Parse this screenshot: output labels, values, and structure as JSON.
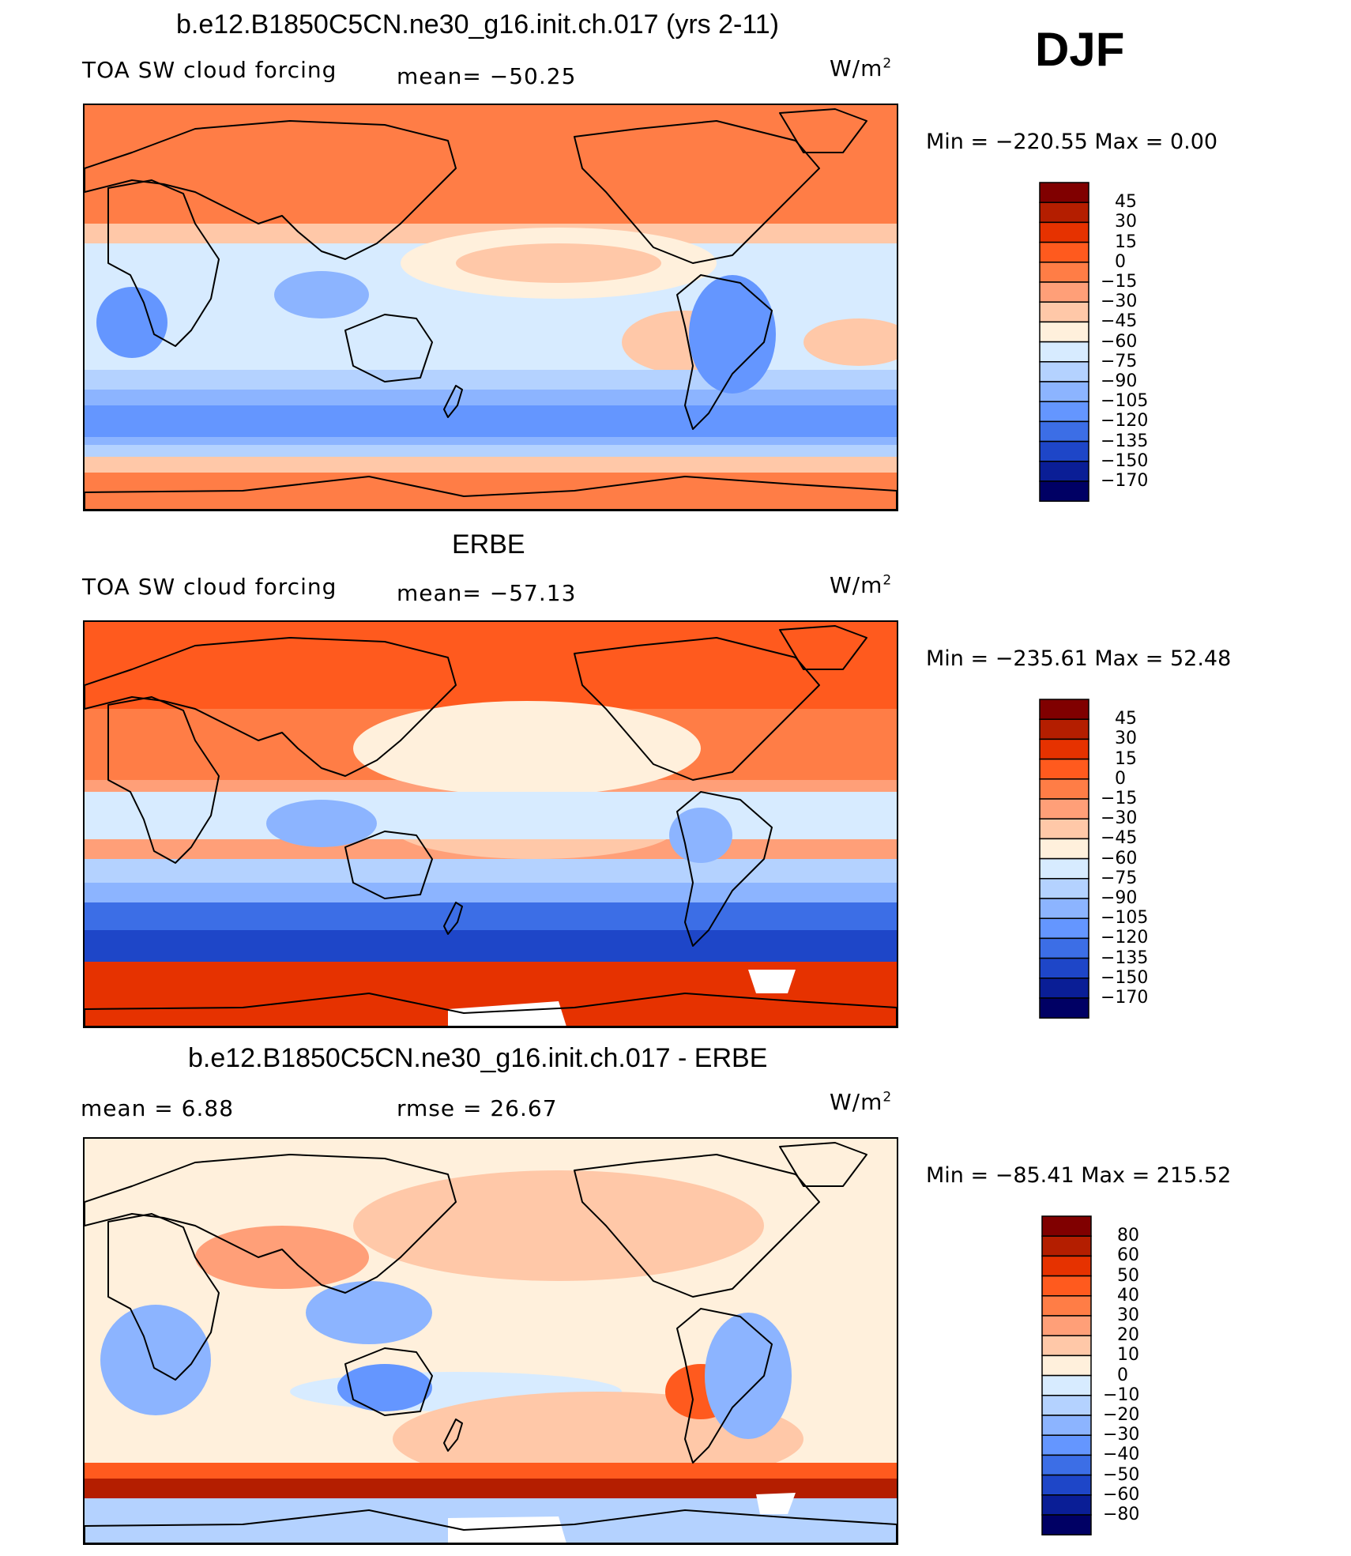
{
  "season": "DJF",
  "panels": [
    {
      "title": "b.e12.B1850C5CN.ne30_g16.init.ch.017 (yrs 2-11)",
      "left_text": "TOA SW cloud forcing",
      "mid_text": "mean= −50.25",
      "units": "W/m",
      "units_sup": "2",
      "min_max": "Min  =  −220.55  Max  =     0.00",
      "colors": [
        "#800000",
        "#b41e00",
        "#e63200",
        "#ff5a1e",
        "#ff7d46",
        "#ff9f78",
        "#ffc8a8",
        "#fff0dc",
        "#d7ebff",
        "#b4d2ff",
        "#8cb4ff",
        "#6496ff",
        "#3c6ee6",
        "#1e46c8",
        "#0a1e96",
        "#000064"
      ],
      "levels": [
        "45",
        "30",
        "15",
        "0",
        "−15",
        "−30",
        "−45",
        "−60",
        "−75",
        "−90",
        "−105",
        "−120",
        "−135",
        "−150",
        "−170"
      ]
    },
    {
      "title": "ERBE",
      "left_text": "TOA SW cloud forcing",
      "mid_text": "mean= −57.13",
      "units": "W/m",
      "units_sup": "2",
      "min_max": "Min  =  −235.61  Max  =    52.48",
      "colors": [
        "#800000",
        "#b41e00",
        "#e63200",
        "#ff5a1e",
        "#ff7d46",
        "#ff9f78",
        "#ffc8a8",
        "#fff0dc",
        "#d7ebff",
        "#b4d2ff",
        "#8cb4ff",
        "#6496ff",
        "#3c6ee6",
        "#1e46c8",
        "#0a1e96",
        "#000064"
      ],
      "levels": [
        "45",
        "30",
        "15",
        "0",
        "−15",
        "−30",
        "−45",
        "−60",
        "−75",
        "−90",
        "−105",
        "−120",
        "−135",
        "−150",
        "−170"
      ]
    },
    {
      "title": "b.e12.B1850C5CN.ne30_g16.init.ch.017 - ERBE",
      "left_text": "mean  =     6.88",
      "mid_text": "rmse  =    26.67",
      "units": "W/m",
      "units_sup": "2",
      "min_max": "Min  =  −85.41  Max  =  215.52",
      "colors": [
        "#800000",
        "#b41e00",
        "#e63200",
        "#ff5a1e",
        "#ff7d46",
        "#ff9f78",
        "#ffc8a8",
        "#fff0dc",
        "#d7ebff",
        "#b4d2ff",
        "#8cb4ff",
        "#6496ff",
        "#3c6ee6",
        "#1e46c8",
        "#0a1e96",
        "#000064"
      ],
      "levels": [
        "80",
        "60",
        "50",
        "40",
        "30",
        "20",
        "10",
        "0",
        "−10",
        "−20",
        "−30",
        "−40",
        "−50",
        "−60",
        "−80"
      ]
    }
  ],
  "chart_data": {
    "type": "heatmap",
    "title": "DJF TOA SW cloud forcing: b.e12.B1850C5CN.ne30_g16.init.ch.017 (yrs 2-11) vs ERBE",
    "units": "W/m2",
    "panels": [
      {
        "name": "b.e12.B1850C5CN.ne30_g16.init.ch.017 (yrs 2-11)",
        "mean": -50.25,
        "min": -220.55,
        "max": 0.0,
        "contour_levels": [
          45,
          30,
          15,
          0,
          -15,
          -30,
          -45,
          -60,
          -75,
          -90,
          -105,
          -120,
          -135,
          -150,
          -170
        ]
      },
      {
        "name": "ERBE",
        "mean": -57.13,
        "min": -235.61,
        "max": 52.48,
        "contour_levels": [
          45,
          30,
          15,
          0,
          -15,
          -30,
          -45,
          -60,
          -75,
          -90,
          -105,
          -120,
          -135,
          -150,
          -170
        ]
      },
      {
        "name": "b.e12.B1850C5CN.ne30_g16.init.ch.017 - ERBE",
        "mean": 6.88,
        "rmse": 26.67,
        "min": -85.41,
        "max": 215.52,
        "contour_levels": [
          80,
          60,
          50,
          40,
          30,
          20,
          10,
          0,
          -10,
          -20,
          -30,
          -40,
          -50,
          -60,
          -80
        ]
      }
    ]
  }
}
